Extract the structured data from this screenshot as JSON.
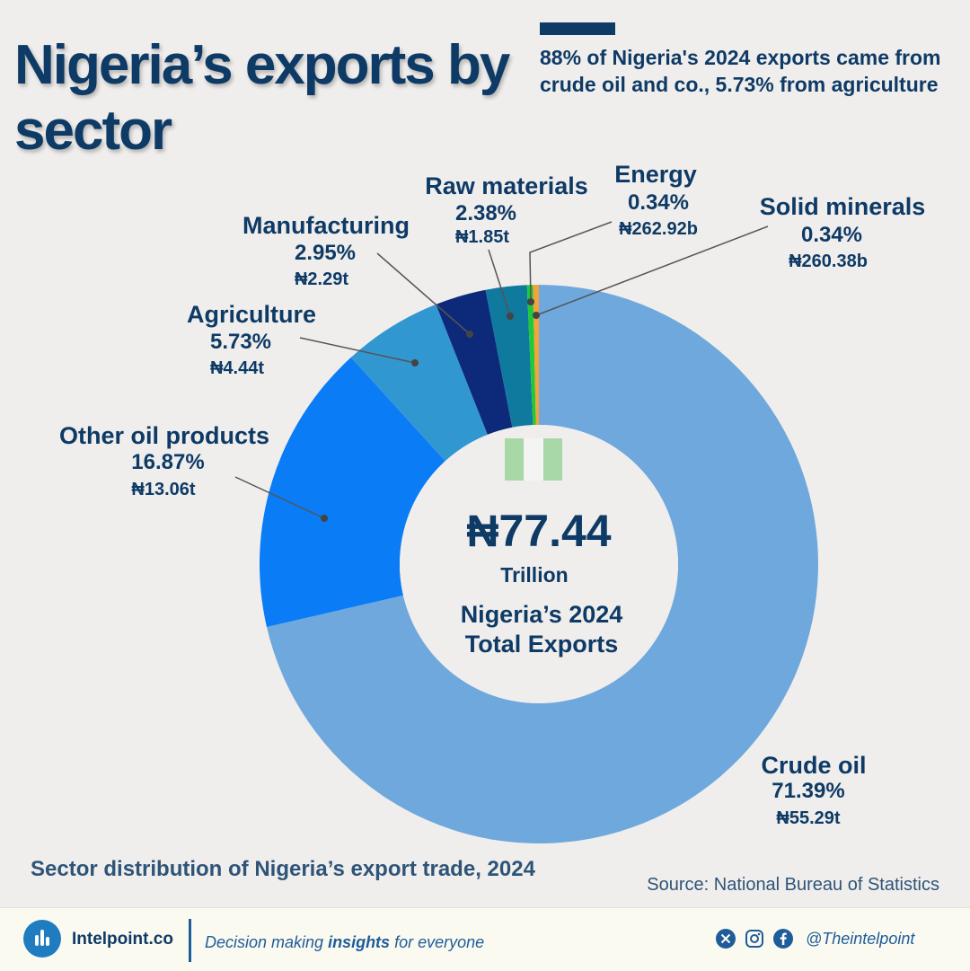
{
  "title": "Nigeria’s exports by sector",
  "headline": "88% of Nigeria's 2024 exports came from crude oil and co., 5.73% from agriculture",
  "center": {
    "value": "₦77.44",
    "unit": "Trillion",
    "label_line1": "Nigeria’s 2024",
    "label_line2": "Total Exports"
  },
  "subtitle": "Sector distribution of Nigeria’s export trade, 2024",
  "source": "Source: National Bureau of Statistics",
  "footer": {
    "brand": "Intelpoint.co",
    "tagline_pre": "Decision making ",
    "tagline_bold": "insights",
    "tagline_post": " for everyone",
    "handle": "@Theintelpoint",
    "icons": [
      "bar-chart-logo-icon",
      "x-icon",
      "instagram-icon",
      "facebook-icon"
    ]
  },
  "colors": {
    "title": "#0e3a66",
    "background": "#f0eeec",
    "flag_green": "#a8d8a8",
    "flag_white": "#f4f4f2"
  },
  "chart_data": {
    "type": "pie",
    "donut": true,
    "title": "",
    "unit": "₦",
    "total": "₦77.44 Trillion",
    "slices": [
      {
        "name": "Crude oil",
        "percent": 71.39,
        "value": "₦55.29t",
        "value_trillion": 55.29,
        "color": "#6fa8dc"
      },
      {
        "name": "Other oil products",
        "percent": 16.87,
        "value": "₦13.06t",
        "value_trillion": 13.06,
        "color": "#0a7cf5"
      },
      {
        "name": "Agriculture",
        "percent": 5.73,
        "value": "₦4.44t",
        "value_trillion": 4.44,
        "color": "#3197d1"
      },
      {
        "name": "Manufacturing",
        "percent": 2.95,
        "value": "₦2.29t",
        "value_trillion": 2.29,
        "color": "#0d2a7a"
      },
      {
        "name": "Raw materials",
        "percent": 2.38,
        "value": "₦1.85t",
        "value_trillion": 1.85,
        "color": "#10799e"
      },
      {
        "name": "Energy",
        "percent": 0.34,
        "value": "₦262.92b",
        "value_trillion": 0.26292,
        "color": "#1ec93a"
      },
      {
        "name": "Solid minerals",
        "percent": 0.34,
        "value": "₦260.38b",
        "value_trillion": 0.26038,
        "color": "#f2a33a"
      }
    ]
  }
}
